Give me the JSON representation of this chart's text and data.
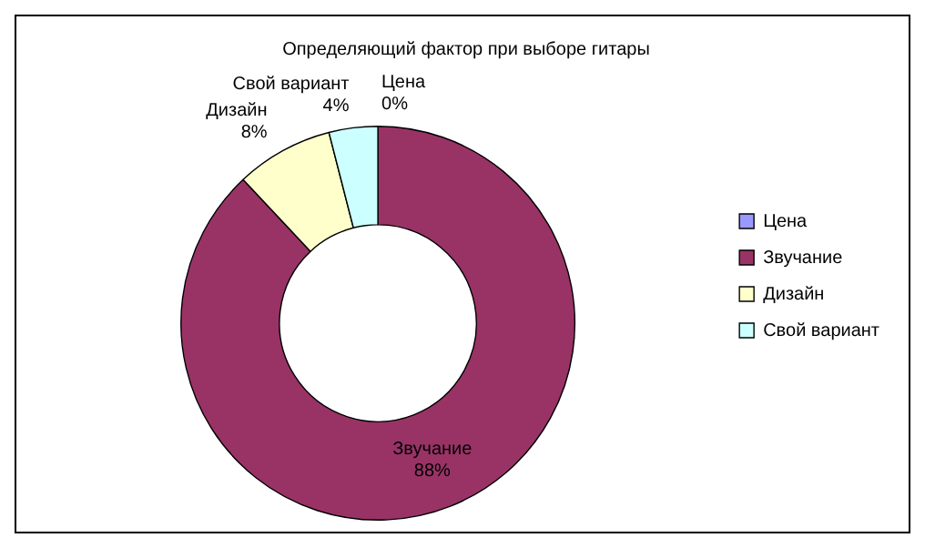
{
  "chart_data": {
    "type": "donut",
    "title": "Определяющий фактор при выборе гитары",
    "categories": [
      "Цена",
      "Звучание",
      "Дизайн",
      "Свой вариант"
    ],
    "values": [
      0,
      88,
      8,
      4
    ],
    "colors": [
      "#9999ff",
      "#993366",
      "#ffffcc",
      "#ccffff"
    ],
    "value_labels": [
      "0%",
      "88%",
      "8%",
      "4%"
    ],
    "legend": "right"
  }
}
